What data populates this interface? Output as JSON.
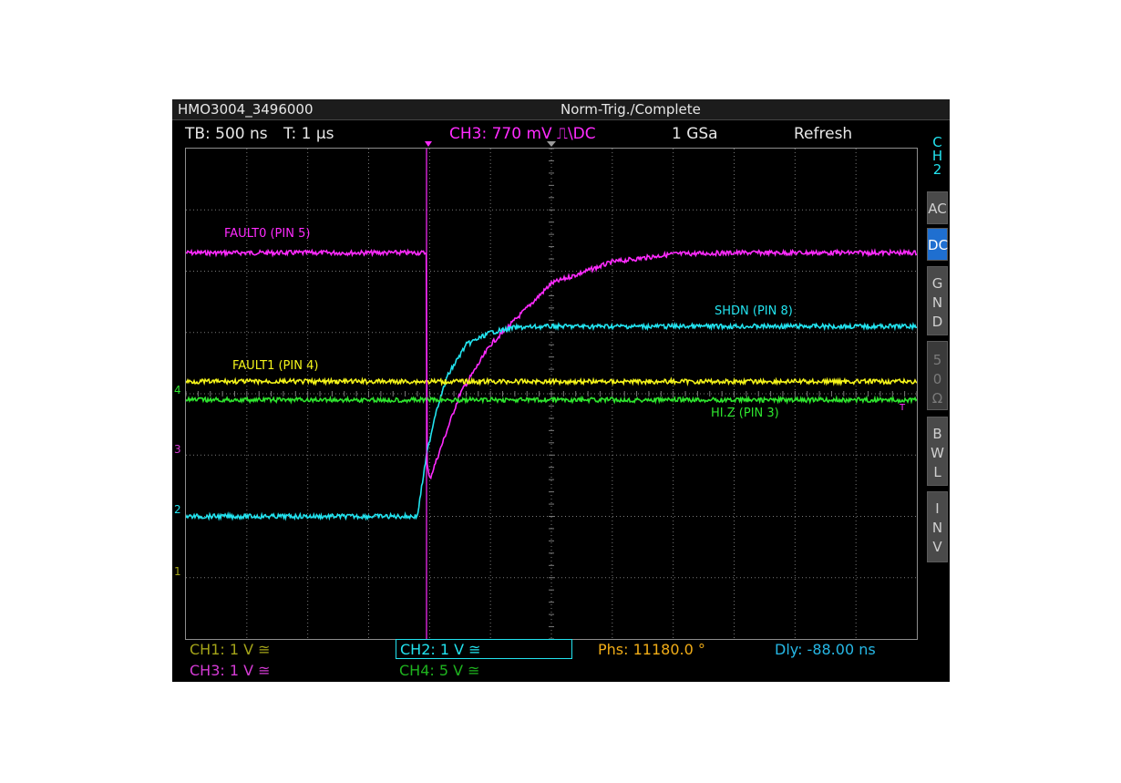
{
  "window": {
    "title": "HMO3004_3496000",
    "status": "Norm-Trig./Complete"
  },
  "top_info": {
    "timebase": "TB: 500 ns",
    "trigger_time": "T: 1 µs",
    "trigger_setting": "CH3: 770 mV ⎍\\DC",
    "sample_rate": "1 GSa",
    "mode": "Refresh"
  },
  "sidebar": {
    "channel": [
      "C",
      "H",
      "2"
    ],
    "buttons": [
      {
        "label": [
          "A",
          "C"
        ],
        "active": false
      },
      {
        "label": [
          "D",
          "C"
        ],
        "active": true
      },
      {
        "label": [
          "G",
          "N",
          "D"
        ],
        "active": false
      },
      {
        "label": [
          "5",
          "0",
          "Ω"
        ],
        "active": false
      },
      {
        "label": [
          "B",
          "W",
          "L"
        ],
        "active": false
      },
      {
        "label": [
          "I",
          "N",
          "V"
        ],
        "active": false
      }
    ]
  },
  "waveform_labels": {
    "fault0": "FAULT0 (PIN 5)",
    "shdn": "SHDN (PIN 8)",
    "fault1": "FAULT1 (PIN 4)",
    "hiz": "HI.Z (PIN 3)"
  },
  "markers": {
    "ch4": "4",
    "ch3": "3",
    "ch2": "2",
    "ch1": "1",
    "trigger": "T"
  },
  "bottom": {
    "ch1": "CH1: 1 V ≅",
    "ch2": "CH2: 1 V ≅",
    "ch3": "CH3: 1 V ≅",
    "ch4": "CH4: 5 V ≅",
    "phase": "Phs: 11180.0 °",
    "delay": "Dly: -88.00 ns"
  },
  "colors": {
    "ch1": "#f5f51a",
    "ch2": "#22e3ef",
    "ch3": "#ff2bff",
    "ch4": "#2ee52e",
    "grid": "#7a7a7a"
  },
  "chart_data": {
    "type": "line",
    "x_divisions": 12,
    "y_divisions": 8,
    "series": [
      {
        "name": "FAULT0 (PIN 5)",
        "color": "#ff2bff",
        "x": [
          0,
          3.95,
          3.95,
          4.0,
          4.5,
          5.0,
          6.0,
          7.0,
          8.0,
          9.0,
          12
        ],
        "y": [
          6.3,
          6.3,
          2.9,
          2.6,
          4.0,
          4.8,
          5.8,
          6.15,
          6.28,
          6.3,
          6.3
        ]
      },
      {
        "name": "SHDN (PIN 8)",
        "color": "#22e3ef",
        "x": [
          0,
          3.8,
          3.95,
          4.1,
          4.3,
          4.6,
          5.0,
          5.4,
          6.0,
          12
        ],
        "y": [
          2.0,
          2.0,
          3.0,
          3.7,
          4.3,
          4.8,
          5.0,
          5.08,
          5.1,
          5.1
        ]
      },
      {
        "name": "FAULT1 (PIN 4)",
        "color": "#f5f51a",
        "x": [
          0,
          12
        ],
        "y": [
          4.2,
          4.2
        ]
      },
      {
        "name": "HI.Z (PIN 3)",
        "color": "#2ee52e",
        "x": [
          0,
          12
        ],
        "y": [
          3.9,
          3.9
        ]
      }
    ]
  }
}
